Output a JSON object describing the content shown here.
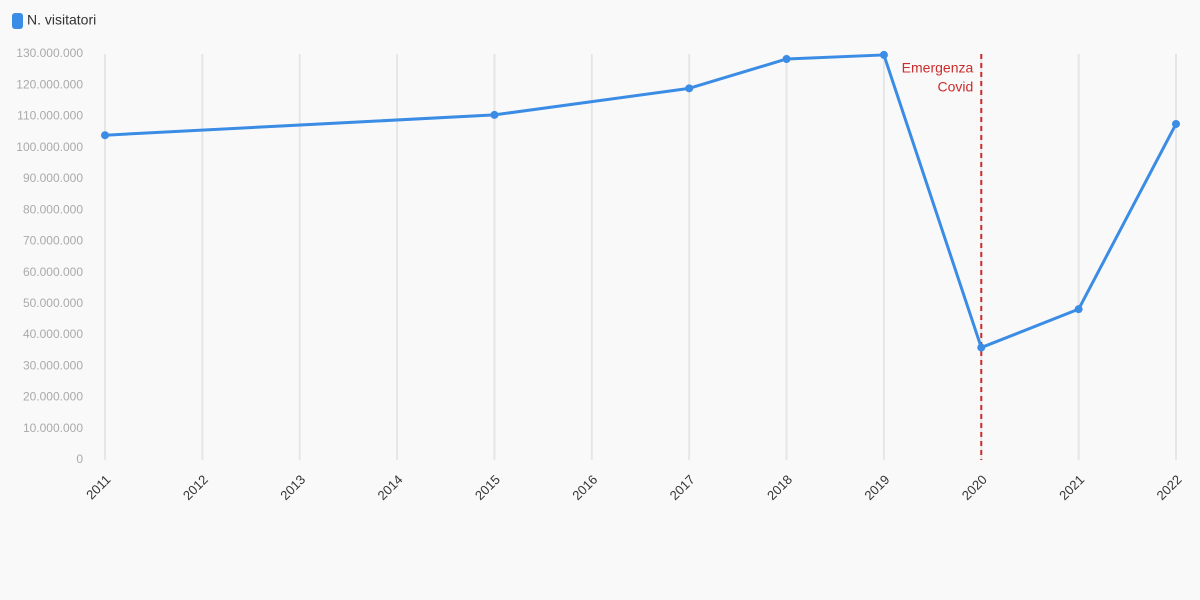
{
  "chart_data": {
    "type": "line",
    "x": [
      2011,
      2015,
      2017,
      2018,
      2019,
      2020,
      2021,
      2022
    ],
    "series": [
      {
        "name": "N. visitatori",
        "color": "#3b8ce4",
        "values": [
          104000000,
          110500000,
          119000000,
          128400000,
          129700000,
          36000000,
          48300000,
          107600000
        ]
      }
    ],
    "xlim": [
      2011,
      2022
    ],
    "xticks": [
      2011,
      2012,
      2013,
      2014,
      2015,
      2016,
      2017,
      2018,
      2019,
      2020,
      2021,
      2022
    ],
    "ylim": [
      0,
      130000000
    ],
    "yticks": [
      0,
      {
        "value": 10000000,
        "label": "10.000.000"
      },
      {
        "value": 20000000,
        "label": "20.000.000"
      },
      {
        "value": 30000000,
        "label": "30.000.000"
      },
      {
        "value": 40000000,
        "label": "40.000.000"
      },
      {
        "value": 50000000,
        "label": "50.000.000"
      },
      {
        "value": 60000000,
        "label": "60.000.000"
      },
      {
        "value": 70000000,
        "label": "70.000.000"
      },
      {
        "value": 80000000,
        "label": "80.000.000"
      },
      {
        "value": 90000000,
        "label": "90.000.000"
      },
      {
        "value": 100000000,
        "label": "100.000.000"
      },
      {
        "value": 110000000,
        "label": "110.000.000"
      },
      {
        "value": 120000000,
        "label": "120.000.000"
      },
      {
        "value": 130000000,
        "label": "130.000.000"
      }
    ],
    "grid": "x",
    "annotation": {
      "x": 2020,
      "lines": [
        "Emergenza",
        "Covid"
      ],
      "color": "#cc2b2b"
    }
  }
}
